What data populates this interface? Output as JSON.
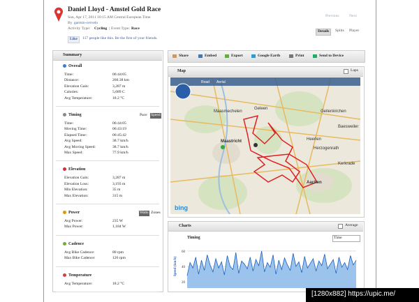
{
  "header": {
    "title": "Daniel Lloyd - Amstel Gold Race",
    "date": "Sun, Apr 17, 2011 10:15 AM Central European Time",
    "by_label": "By",
    "author": "garmin-cervelo",
    "activity_type_label": "Activity Type:",
    "activity_type": "Cycling",
    "separator": "|",
    "event_type_label": "Event Type:",
    "event_type": "Race",
    "like_button": "Like",
    "like_text": "117 people like this. Be the first of your friends."
  },
  "nav": {
    "previous": "Previous",
    "next": "Next"
  },
  "tabs": [
    "Details",
    "Splits",
    "Player"
  ],
  "summary": {
    "title": "Summary",
    "sections": [
      {
        "title": "Overall",
        "rows": [
          [
            "Time:",
            "06:44:05"
          ],
          [
            "Distance:",
            "260.38 km"
          ],
          [
            "Elevation Gain:",
            "3,287 m"
          ],
          [
            "Calories:",
            "5,689 C"
          ],
          [
            "Avg Temperature:",
            "18.2 °C"
          ]
        ]
      },
      {
        "title": "Timing",
        "toggles": [
          "Pace",
          "Speed"
        ],
        "rows": [
          [
            "Time:",
            "06:44:05"
          ],
          [
            "Moving Time:",
            "06:43:19"
          ],
          [
            "Elapsed Time:",
            "06:45:42"
          ],
          [
            "Avg Speed:",
            "38.7 km/h"
          ],
          [
            "Avg Moving Speed:",
            "38.7 km/h"
          ],
          [
            "Max Speed:",
            "77.9 km/h"
          ]
        ]
      },
      {
        "title": "Elevation",
        "rows": [
          [
            "Elevation Gain:",
            "3,287 m"
          ],
          [
            "Elevation Loss:",
            "3,193 m"
          ],
          [
            "Min Elevation:",
            "35 m"
          ],
          [
            "Max Elevation:",
            "315 m"
          ]
        ]
      },
      {
        "title": "Power",
        "toggles": [
          "Watts",
          "Zones"
        ],
        "rows": [
          [
            "Avg Power:",
            "235 W"
          ],
          [
            "Max Power:",
            "1,184 W"
          ]
        ]
      },
      {
        "title": "Cadence",
        "rows": [
          [
            "Avg Bike Cadence:",
            "80 rpm"
          ],
          [
            "Max Bike Cadence:",
            "126 rpm"
          ]
        ]
      },
      {
        "title": "Temperature",
        "rows": [
          [
            "Avg Temperature:",
            "18.2 °C"
          ]
        ]
      }
    ]
  },
  "toolbar": [
    "Share",
    "Embed",
    "Export",
    "Google Earth",
    "Print",
    "Send to Device"
  ],
  "map": {
    "title": "Map",
    "laps": "Laps",
    "buttons": [
      "Road",
      "Aerial"
    ],
    "places": [
      "Maastricht",
      "Aachen",
      "Geleen",
      "Maasmechelen",
      "Heerlen",
      "Geilenkirchen",
      "Herzogenrath",
      "Baesweiler",
      "Kerkrade"
    ],
    "logo": "bing"
  },
  "charts": {
    "title": "Charts",
    "average": "Average",
    "subtitle": "Timing",
    "select": "Time",
    "speed_chart": {
      "type": "area",
      "y_label": "Speed (km/h)",
      "ylim": [
        12,
        68
      ],
      "yticks": [
        20,
        40,
        60
      ],
      "values": [
        28,
        45,
        38,
        52,
        30,
        48,
        35,
        55,
        42,
        33,
        50,
        38,
        46,
        29,
        54,
        40,
        36,
        58,
        31,
        47,
        43,
        37,
        52,
        34,
        49,
        41,
        60,
        33,
        45,
        39,
        55,
        30,
        48,
        36,
        51,
        42,
        35,
        57,
        40,
        46,
        32,
        53,
        38,
        44,
        50,
        34,
        47,
        41,
        56,
        37,
        43,
        49,
        31,
        52,
        39,
        45,
        36,
        54,
        42,
        48
      ]
    }
  },
  "watermark": "[1280x882] https://upic.me/"
}
